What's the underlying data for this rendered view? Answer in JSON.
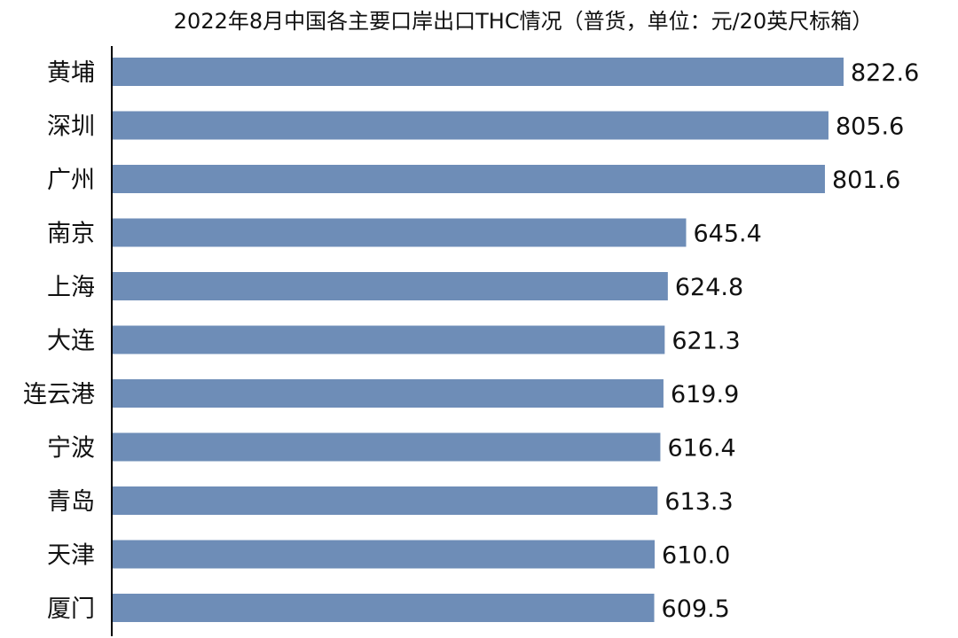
{
  "chart_data": {
    "type": "bar",
    "orientation": "horizontal",
    "title": "2022年8月中国各主要口岸出口THC情况（普货，单位：元/20英尺标箱）",
    "categories": [
      "黄埔",
      "深圳",
      "广州",
      "南京",
      "上海",
      "大连",
      "连云港",
      "宁波",
      "青岛",
      "天津",
      "厦门"
    ],
    "values": [
      822.6,
      805.6,
      801.6,
      645.4,
      624.8,
      621.3,
      619.9,
      616.4,
      613.3,
      610.0,
      609.5
    ],
    "value_labels": [
      "822.6",
      "805.6",
      "801.6",
      "645.4",
      "624.8",
      "621.3",
      "619.9",
      "616.4",
      "613.3",
      "610.0",
      "609.5"
    ],
    "xlim": [
      0,
      822.6
    ],
    "grid": false,
    "bar_color": "#6e8db7"
  }
}
